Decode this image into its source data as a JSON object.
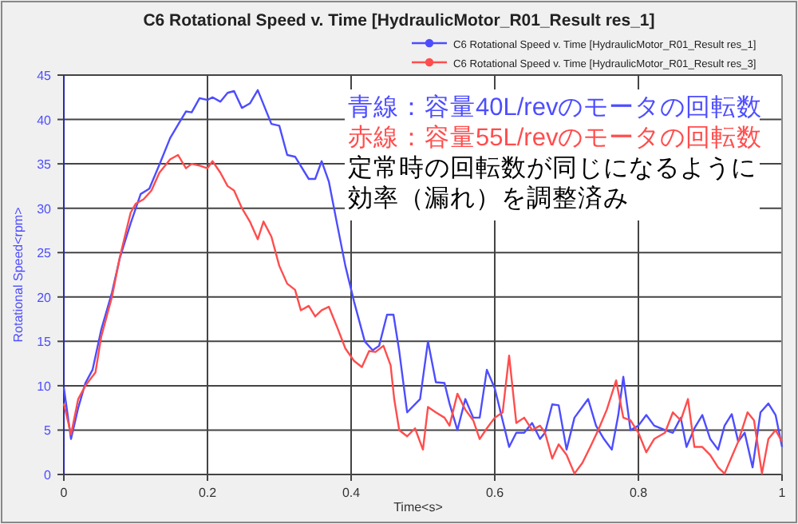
{
  "chart_data": {
    "type": "line",
    "title": "C6 Rotational Speed v. Time [HydraulicMotor_R01_Result res_1]",
    "xlabel": "Time<s>",
    "ylabel": "Rotational Speed<rpm>",
    "annotations": [
      "青線：容量40L/revのモータの回転数",
      "赤線：容量55L/revのモータの回転数",
      "定常時の回転数が同じになるように",
      "効率（漏れ）を調整済み"
    ],
    "xlim": [
      0,
      1
    ],
    "ylim": [
      0,
      45
    ],
    "xticks": [
      {
        "value": 0,
        "label": "0"
      },
      {
        "value": 0.2,
        "label": "0.2"
      },
      {
        "value": 0.4,
        "label": "0.4"
      },
      {
        "value": 0.6,
        "label": "0.6"
      },
      {
        "value": 0.8,
        "label": "0.8"
      },
      {
        "value": 1,
        "label": "1"
      }
    ],
    "yticks": [
      0,
      5,
      10,
      15,
      20,
      25,
      30,
      35,
      40,
      45
    ],
    "grid": true,
    "legend": "top right",
    "marker": "none",
    "line_style": "solid",
    "series": [
      {
        "name": "C6 Rotational Speed v. Time [HydraulicMotor_R01_Result res_1]",
        "color": "#4d4dff",
        "x": [
          0,
          0.01,
          0.02,
          0.03,
          0.04,
          0.052,
          0.067,
          0.078,
          0.093,
          0.107,
          0.119,
          0.133,
          0.148,
          0.159,
          0.17,
          0.178,
          0.189,
          0.2,
          0.207,
          0.218,
          0.228,
          0.237,
          0.248,
          0.259,
          0.27,
          0.289,
          0.3,
          0.311,
          0.322,
          0.341,
          0.35,
          0.359,
          0.369,
          0.381,
          0.392,
          0.404,
          0.419,
          0.43,
          0.439,
          0.45,
          0.459,
          0.467,
          0.478,
          0.496,
          0.507,
          0.518,
          0.53,
          0.537,
          0.548,
          0.559,
          0.57,
          0.579,
          0.589,
          0.6,
          0.62,
          0.63,
          0.641,
          0.652,
          0.663,
          0.67,
          0.68,
          0.689,
          0.7,
          0.711,
          0.73,
          0.741,
          0.752,
          0.763,
          0.772,
          0.779,
          0.789,
          0.8,
          0.811,
          0.822,
          0.837,
          0.848,
          0.859,
          0.867,
          0.878,
          0.889,
          0.9,
          0.911,
          0.92,
          0.93,
          0.939,
          0.948,
          0.959,
          0.97,
          0.981,
          0.991,
          1.0
        ],
        "values": [
          9.8,
          4,
          7.5,
          10.3,
          11.8,
          16.3,
          20.5,
          24.4,
          28.3,
          31.6,
          32.2,
          34.9,
          37.9,
          39.4,
          40.9,
          40.8,
          42.4,
          42.2,
          42.5,
          42,
          43,
          43.2,
          41.3,
          41.8,
          43.3,
          39.5,
          39.3,
          36,
          35.8,
          33.3,
          33.3,
          35.3,
          33,
          28,
          23.5,
          19.5,
          15,
          14,
          14.5,
          18,
          18,
          13.9,
          7,
          8.5,
          15,
          10.4,
          10.3,
          8,
          5,
          8.5,
          6.4,
          6.4,
          11.8,
          9.7,
          3.1,
          4.7,
          4.7,
          5.8,
          4,
          4.7,
          7.9,
          7.8,
          2.8,
          6.4,
          8.5,
          5.5,
          4,
          2.8,
          6.7,
          11,
          5,
          5.5,
          6.7,
          5.5,
          5,
          4.7,
          6.4,
          3.1,
          5.2,
          6.7,
          4,
          2.8,
          5.5,
          6.8,
          3.7,
          4.7,
          0.8,
          7,
          8,
          6.7,
          3.1
        ]
      },
      {
        "name": "C6 Rotational Speed v. Time [HydraulicMotor_R01_Result res_3]",
        "color": "#ff4d4d",
        "x": [
          0,
          0.01,
          0.02,
          0.03,
          0.044,
          0.052,
          0.067,
          0.078,
          0.093,
          0.1,
          0.111,
          0.122,
          0.133,
          0.148,
          0.159,
          0.17,
          0.178,
          0.189,
          0.2,
          0.207,
          0.218,
          0.228,
          0.237,
          0.248,
          0.259,
          0.27,
          0.278,
          0.289,
          0.3,
          0.311,
          0.322,
          0.33,
          0.341,
          0.35,
          0.359,
          0.369,
          0.381,
          0.392,
          0.404,
          0.415,
          0.425,
          0.434,
          0.445,
          0.455,
          0.46,
          0.467,
          0.478,
          0.489,
          0.5,
          0.507,
          0.518,
          0.53,
          0.537,
          0.548,
          0.559,
          0.57,
          0.579,
          0.589,
          0.6,
          0.611,
          0.62,
          0.63,
          0.641,
          0.652,
          0.663,
          0.67,
          0.68,
          0.689,
          0.7,
          0.711,
          0.722,
          0.733,
          0.744,
          0.756,
          0.769,
          0.779,
          0.789,
          0.8,
          0.811,
          0.822,
          0.837,
          0.848,
          0.859,
          0.869,
          0.878,
          0.889,
          0.9,
          0.911,
          0.92,
          0.93,
          0.939,
          0.952,
          0.961,
          0.972,
          0.981,
          0.991,
          1.0
        ],
        "values": [
          8,
          4.5,
          8.5,
          10,
          11.5,
          15.5,
          20,
          24.5,
          29.5,
          30.5,
          31,
          32,
          34,
          35.5,
          36,
          34.5,
          35,
          34.8,
          34.5,
          35.3,
          34,
          32.5,
          32,
          30,
          28.5,
          26.5,
          28.5,
          26.8,
          23.5,
          21.5,
          20.8,
          18.5,
          19,
          17.8,
          18.5,
          18.9,
          16.5,
          14.2,
          12.8,
          12.1,
          13.9,
          13.8,
          14.5,
          12.3,
          8.5,
          5,
          4.3,
          5.2,
          2.8,
          7.6,
          7,
          6.4,
          5.5,
          9.1,
          7.3,
          6.1,
          4,
          5.2,
          6.4,
          7,
          13.4,
          5.8,
          6.4,
          5,
          5.5,
          4.7,
          1.8,
          3.4,
          2.2,
          0.1,
          1.3,
          3.1,
          5,
          7.3,
          10.6,
          6.4,
          6.1,
          4.7,
          2.5,
          4,
          4.7,
          7,
          6.1,
          8.5,
          3.1,
          3.1,
          2.2,
          0.8,
          0.1,
          2,
          3.7,
          7,
          6.1,
          0.1,
          4,
          5,
          3.7
        ]
      }
    ]
  }
}
